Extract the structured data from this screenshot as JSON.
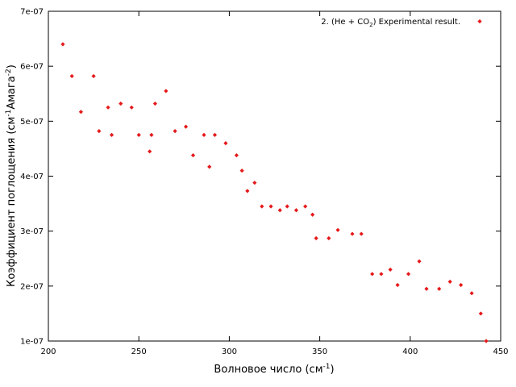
{
  "chart_data": {
    "type": "scatter",
    "title": "",
    "xlabel": "Волновое число (см",
    "xlabel_sup": "-1",
    "xlabel_tail": ")",
    "ylabel": "Коэффициент поглощения (см",
    "ylabel_sup1": "-1",
    "ylabel_mid": "Амага",
    "ylabel_sup2": "-2",
    "ylabel_tail": ")",
    "xlim": [
      200,
      450
    ],
    "ylim": [
      1e-07,
      7e-07
    ],
    "x_ticks": [
      200,
      250,
      300,
      350,
      400,
      450
    ],
    "x_tick_labels": [
      "200",
      "250",
      "300",
      "350",
      "400",
      "450"
    ],
    "y_ticks": [
      1e-07,
      2e-07,
      3e-07,
      4e-07,
      5e-07,
      6e-07,
      7e-07
    ],
    "y_tick_labels": [
      "1e-07",
      "2e-07",
      "3e-07",
      "4e-07",
      "5e-07",
      "6e-07",
      "7e-07"
    ],
    "grid": false,
    "legend_position": "top-right",
    "marker_color": "#e41a1c",
    "series": [
      {
        "name": "2. (He + CO",
        "name_sub": "2",
        "name_tail": ") Experimental result.",
        "points": [
          [
            208,
            6.4e-07
          ],
          [
            213,
            5.82e-07
          ],
          [
            218,
            5.17e-07
          ],
          [
            225,
            5.82e-07
          ],
          [
            228,
            4.82e-07
          ],
          [
            233,
            5.25e-07
          ],
          [
            235,
            4.75e-07
          ],
          [
            240,
            5.32e-07
          ],
          [
            246,
            5.25e-07
          ],
          [
            250,
            4.75e-07
          ],
          [
            256,
            4.45e-07
          ],
          [
            257,
            4.75e-07
          ],
          [
            259,
            5.32e-07
          ],
          [
            265,
            5.55e-07
          ],
          [
            270,
            4.82e-07
          ],
          [
            276,
            4.9e-07
          ],
          [
            280,
            4.38e-07
          ],
          [
            286,
            4.75e-07
          ],
          [
            289,
            4.17e-07
          ],
          [
            292,
            4.75e-07
          ],
          [
            298,
            4.6e-07
          ],
          [
            304,
            4.38e-07
          ],
          [
            307,
            4.1e-07
          ],
          [
            310,
            3.73e-07
          ],
          [
            314,
            3.88e-07
          ],
          [
            318,
            3.45e-07
          ],
          [
            323,
            3.45e-07
          ],
          [
            328,
            3.38e-07
          ],
          [
            332,
            3.45e-07
          ],
          [
            337,
            3.38e-07
          ],
          [
            342,
            3.45e-07
          ],
          [
            346,
            3.3e-07
          ],
          [
            348,
            2.87e-07
          ],
          [
            355,
            2.87e-07
          ],
          [
            360,
            3.02e-07
          ],
          [
            368,
            2.95e-07
          ],
          [
            373,
            2.95e-07
          ],
          [
            379,
            2.22e-07
          ],
          [
            384,
            2.22e-07
          ],
          [
            389,
            2.3e-07
          ],
          [
            393,
            2.02e-07
          ],
          [
            399,
            2.22e-07
          ],
          [
            405,
            2.45e-07
          ],
          [
            409,
            1.95e-07
          ],
          [
            416,
            1.95e-07
          ],
          [
            422,
            2.08e-07
          ],
          [
            428,
            2.02e-07
          ],
          [
            434,
            1.87e-07
          ],
          [
            439,
            1.5e-07
          ],
          [
            442,
            1e-07
          ]
        ]
      }
    ]
  }
}
